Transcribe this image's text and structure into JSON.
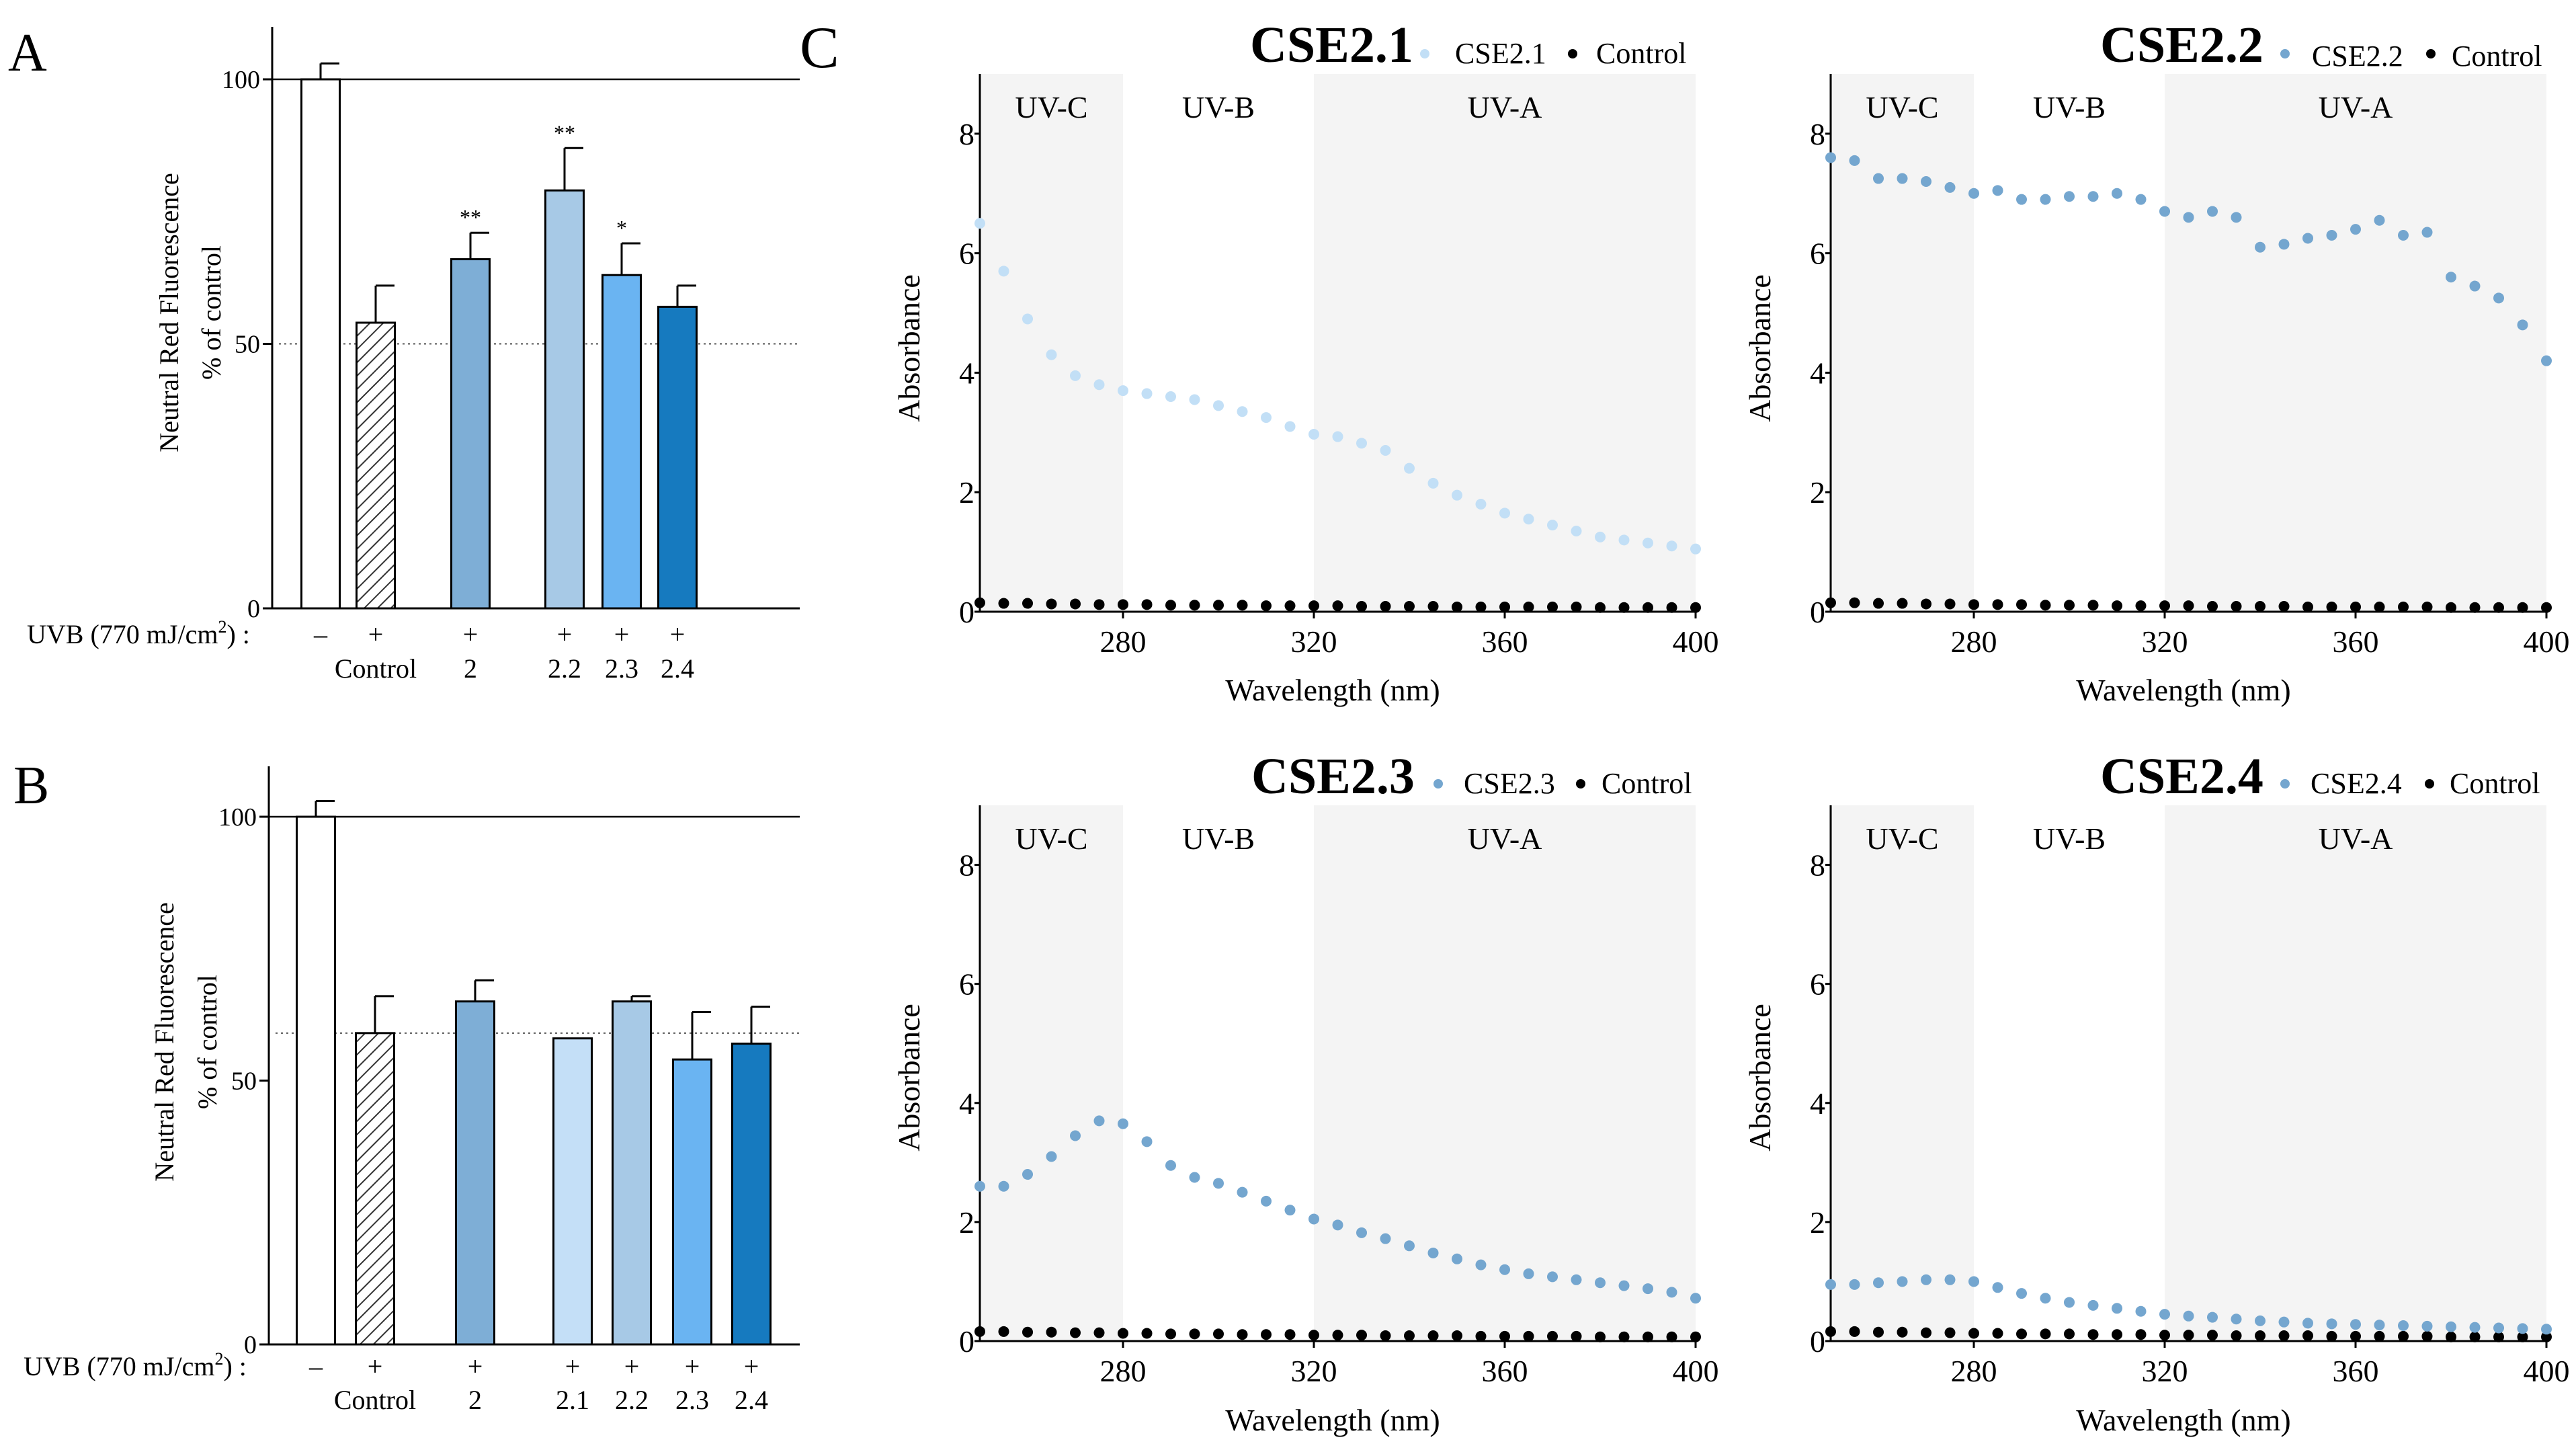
{
  "panel_labels": {
    "a": "A",
    "b": "B",
    "c": "C"
  },
  "colors": {
    "cse2": "#7eaed6",
    "cse2_1": "#c4dff7",
    "cse2_2": "#a7c9e6",
    "cse2_3": "#6ab4f2",
    "cse2_4": "#167abf",
    "cse2_1_dots": "#c2dff6",
    "cse2_2_dots": "#74a6cf",
    "cse2_3_dots": "#74a6cf",
    "cse2_4_dots": "#74a6cf",
    "control_dots": "#000000",
    "uv_shade": "#f4f4f4"
  },
  "chart_data": [
    {
      "id": "A",
      "type": "bar",
      "ylabel_line1": "Neutral Red Fluorescence",
      "ylabel_line2": "% of control",
      "ylim": [
        0,
        110
      ],
      "yticks": [
        "0",
        "50",
        "100"
      ],
      "reference_line": 100,
      "dotted_line": 50,
      "uvb_label": "UVB (770 mJ/cm",
      "uvb_sup": "2",
      "uvb_close": ") :",
      "categories": [
        {
          "uvb": "–",
          "name": "",
          "value": 100,
          "err": 3,
          "style": "open",
          "sig": ""
        },
        {
          "uvb": "+",
          "name": "Control",
          "value": 54,
          "err": 7,
          "style": "hatch",
          "sig": ""
        },
        {
          "uvb": "+",
          "name": "2",
          "value": 66,
          "err": 5,
          "style": "cse2",
          "sig": "**"
        },
        {
          "uvb": "+",
          "name": "2.2",
          "value": 79,
          "err": 8,
          "style": "cse2_2",
          "sig": "**"
        },
        {
          "uvb": "+",
          "name": "2.3",
          "value": 63,
          "err": 6,
          "style": "cse2_3",
          "sig": "*"
        },
        {
          "uvb": "+",
          "name": "2.4",
          "value": 57,
          "err": 4,
          "style": "cse2_4",
          "sig": ""
        }
      ]
    },
    {
      "id": "B",
      "type": "bar",
      "ylabel_line1": "Neutral Red Fluorescence",
      "ylabel_line2": "% of control",
      "ylim": [
        0,
        110
      ],
      "yticks": [
        "0",
        "50",
        "100"
      ],
      "reference_line": 100,
      "dotted_line": 59,
      "uvb_label": "UVB (770 mJ/cm",
      "uvb_sup": "2",
      "uvb_close": ") :",
      "categories": [
        {
          "uvb": "–",
          "name": "",
          "value": 100,
          "err": 3,
          "style": "open",
          "sig": ""
        },
        {
          "uvb": "+",
          "name": "Control",
          "value": 59,
          "err": 7,
          "style": "hatch",
          "sig": ""
        },
        {
          "uvb": "+",
          "name": "2",
          "value": 65,
          "err": 4,
          "style": "cse2",
          "sig": ""
        },
        {
          "uvb": "+",
          "name": "2.1",
          "value": 58,
          "err": 0,
          "style": "cse2_1",
          "sig": ""
        },
        {
          "uvb": "+",
          "name": "2.2",
          "value": 65,
          "err": 1,
          "style": "cse2_2",
          "sig": ""
        },
        {
          "uvb": "+",
          "name": "2.3",
          "value": 54,
          "err": 9,
          "style": "cse2_3",
          "sig": ""
        },
        {
          "uvb": "+",
          "name": "2.4",
          "value": 57,
          "err": 7,
          "style": "cse2_4",
          "sig": ""
        }
      ]
    },
    {
      "id": "C1",
      "type": "scatter",
      "title": "CSE2.1",
      "series_name": "CSE2.1",
      "control_name": "Control",
      "color_key": "cse2_1_dots",
      "xlabel": "Wavelength (nm)",
      "ylabel": "Absorbance",
      "xlim": [
        250,
        400
      ],
      "ylim": [
        0,
        9
      ],
      "xticks": [
        "280",
        "320",
        "360",
        "400"
      ],
      "yticks": [
        "0",
        "2",
        "4",
        "6",
        "8"
      ],
      "regions": [
        {
          "label": "UV-C",
          "from": 250,
          "to": 280,
          "shaded": true
        },
        {
          "label": "UV-B",
          "from": 280,
          "to": 320,
          "shaded": false
        },
        {
          "label": "UV-A",
          "from": 320,
          "to": 400,
          "shaded": true
        }
      ],
      "x": [
        250,
        255,
        260,
        265,
        270,
        275,
        280,
        285,
        290,
        295,
        300,
        305,
        310,
        315,
        320,
        325,
        330,
        335,
        340,
        345,
        350,
        355,
        360,
        365,
        370,
        375,
        380,
        385,
        390,
        395,
        400
      ],
      "values": [
        6.5,
        5.7,
        4.9,
        4.3,
        3.95,
        3.8,
        3.7,
        3.65,
        3.6,
        3.55,
        3.45,
        3.35,
        3.25,
        3.1,
        2.97,
        2.93,
        2.82,
        2.7,
        2.4,
        2.15,
        1.95,
        1.8,
        1.65,
        1.55,
        1.45,
        1.35,
        1.25,
        1.2,
        1.15,
        1.1,
        1.05
      ],
      "control": [
        0.15,
        0.14,
        0.14,
        0.13,
        0.13,
        0.12,
        0.12,
        0.12,
        0.11,
        0.11,
        0.11,
        0.11,
        0.1,
        0.1,
        0.1,
        0.1,
        0.09,
        0.09,
        0.09,
        0.09,
        0.08,
        0.08,
        0.08,
        0.08,
        0.08,
        0.08,
        0.07,
        0.07,
        0.07,
        0.07,
        0.07
      ]
    },
    {
      "id": "C2",
      "type": "scatter",
      "title": "CSE2.2",
      "series_name": "CSE2.2",
      "control_name": "Control",
      "color_key": "cse2_2_dots",
      "xlabel": "Wavelength (nm)",
      "ylabel": "Absorbance",
      "xlim": [
        250,
        400
      ],
      "ylim": [
        0,
        9
      ],
      "xticks": [
        "280",
        "320",
        "360",
        "400"
      ],
      "yticks": [
        "0",
        "2",
        "4",
        "6",
        "8"
      ],
      "regions": [
        {
          "label": "UV-C",
          "from": 250,
          "to": 280,
          "shaded": true
        },
        {
          "label": "UV-B",
          "from": 280,
          "to": 320,
          "shaded": false
        },
        {
          "label": "UV-A",
          "from": 320,
          "to": 400,
          "shaded": true
        }
      ],
      "x": [
        250,
        255,
        260,
        265,
        270,
        275,
        280,
        285,
        290,
        295,
        300,
        305,
        310,
        315,
        320,
        325,
        330,
        335,
        340,
        345,
        350,
        355,
        360,
        365,
        370,
        375,
        380,
        385,
        390,
        395,
        400
      ],
      "values": [
        7.6,
        7.55,
        7.25,
        7.25,
        7.2,
        7.1,
        7.0,
        7.05,
        6.9,
        6.9,
        6.95,
        6.95,
        7.0,
        6.9,
        6.7,
        6.6,
        6.7,
        6.6,
        6.1,
        6.15,
        6.25,
        6.3,
        6.4,
        6.55,
        6.3,
        6.35,
        5.6,
        5.45,
        5.25,
        4.8,
        4.2
      ],
      "control": [
        0.15,
        0.15,
        0.14,
        0.14,
        0.13,
        0.13,
        0.12,
        0.12,
        0.12,
        0.11,
        0.11,
        0.11,
        0.1,
        0.1,
        0.1,
        0.1,
        0.09,
        0.09,
        0.09,
        0.09,
        0.08,
        0.08,
        0.08,
        0.08,
        0.08,
        0.08,
        0.07,
        0.07,
        0.07,
        0.07,
        0.07
      ]
    },
    {
      "id": "C3",
      "type": "scatter",
      "title": "CSE2.3",
      "series_name": "CSE2.3",
      "control_name": "Control",
      "color_key": "cse2_3_dots",
      "xlabel": "Wavelength (nm)",
      "ylabel": "Absorbance",
      "xlim": [
        250,
        400
      ],
      "ylim": [
        0,
        9
      ],
      "xticks": [
        "280",
        "320",
        "360",
        "400"
      ],
      "yticks": [
        "0",
        "2",
        "4",
        "6",
        "8"
      ],
      "regions": [
        {
          "label": "UV-C",
          "from": 250,
          "to": 280,
          "shaded": true
        },
        {
          "label": "UV-B",
          "from": 280,
          "to": 320,
          "shaded": false
        },
        {
          "label": "UV-A",
          "from": 320,
          "to": 400,
          "shaded": true
        }
      ],
      "x": [
        250,
        255,
        260,
        265,
        270,
        275,
        280,
        285,
        290,
        295,
        300,
        305,
        310,
        315,
        320,
        325,
        330,
        335,
        340,
        345,
        350,
        355,
        360,
        365,
        370,
        375,
        380,
        385,
        390,
        395,
        400
      ],
      "values": [
        2.6,
        2.6,
        2.8,
        3.1,
        3.45,
        3.7,
        3.65,
        3.35,
        2.95,
        2.75,
        2.65,
        2.5,
        2.35,
        2.2,
        2.05,
        1.95,
        1.82,
        1.72,
        1.6,
        1.48,
        1.38,
        1.28,
        1.2,
        1.13,
        1.08,
        1.03,
        0.98,
        0.93,
        0.88,
        0.82,
        0.72
      ],
      "control": [
        0.16,
        0.16,
        0.15,
        0.15,
        0.14,
        0.14,
        0.13,
        0.13,
        0.12,
        0.12,
        0.12,
        0.11,
        0.11,
        0.11,
        0.1,
        0.1,
        0.1,
        0.09,
        0.09,
        0.09,
        0.09,
        0.08,
        0.08,
        0.08,
        0.08,
        0.08,
        0.07,
        0.07,
        0.07,
        0.07,
        0.07
      ]
    },
    {
      "id": "C4",
      "type": "scatter",
      "title": "CSE2.4",
      "series_name": "CSE2.4",
      "control_name": "Control",
      "color_key": "cse2_4_dots",
      "xlabel": "Wavelength (nm)",
      "ylabel": "Absorbance",
      "xlim": [
        250,
        400
      ],
      "ylim": [
        0,
        9
      ],
      "xticks": [
        "280",
        "320",
        "360",
        "400"
      ],
      "yticks": [
        "0",
        "2",
        "4",
        "6",
        "8"
      ],
      "regions": [
        {
          "label": "UV-C",
          "from": 250,
          "to": 280,
          "shaded": true
        },
        {
          "label": "UV-B",
          "from": 280,
          "to": 320,
          "shaded": false
        },
        {
          "label": "UV-A",
          "from": 320,
          "to": 400,
          "shaded": true
        }
      ],
      "x": [
        250,
        255,
        260,
        265,
        270,
        275,
        280,
        285,
        290,
        295,
        300,
        305,
        310,
        315,
        320,
        325,
        330,
        335,
        340,
        345,
        350,
        355,
        360,
        365,
        370,
        375,
        380,
        385,
        390,
        395,
        400
      ],
      "values": [
        0.95,
        0.95,
        0.98,
        1.0,
        1.03,
        1.03,
        1.0,
        0.9,
        0.8,
        0.72,
        0.65,
        0.6,
        0.55,
        0.5,
        0.45,
        0.42,
        0.4,
        0.37,
        0.34,
        0.32,
        0.3,
        0.29,
        0.28,
        0.27,
        0.26,
        0.25,
        0.24,
        0.23,
        0.22,
        0.21,
        0.2
      ],
      "control": [
        0.16,
        0.16,
        0.15,
        0.15,
        0.14,
        0.14,
        0.13,
        0.13,
        0.12,
        0.12,
        0.12,
        0.11,
        0.11,
        0.11,
        0.1,
        0.1,
        0.1,
        0.09,
        0.09,
        0.09,
        0.09,
        0.08,
        0.08,
        0.08,
        0.08,
        0.08,
        0.07,
        0.07,
        0.07,
        0.07,
        0.07
      ]
    }
  ]
}
